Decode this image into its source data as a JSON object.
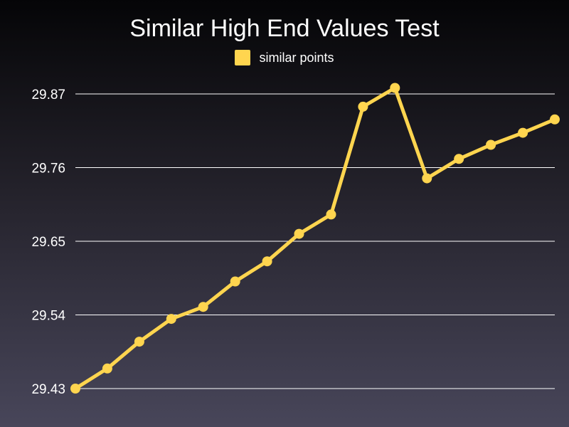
{
  "chart_data": {
    "type": "line",
    "title": "Similar High End Values Test",
    "xlabel": "",
    "ylabel": "",
    "ylim": [
      29.43,
      29.87
    ],
    "y_ticks": [
      "29.43",
      "29.54",
      "29.65",
      "29.76",
      "29.87"
    ],
    "grid": true,
    "legend_position": "top-center",
    "series": [
      {
        "name": "similar points",
        "color": "#ffd54f",
        "values": [
          29.43,
          29.46,
          29.5,
          29.534,
          29.552,
          29.59,
          29.62,
          29.661,
          29.69,
          29.851,
          29.879,
          29.744,
          29.773,
          29.794,
          29.812,
          29.832
        ]
      }
    ]
  }
}
